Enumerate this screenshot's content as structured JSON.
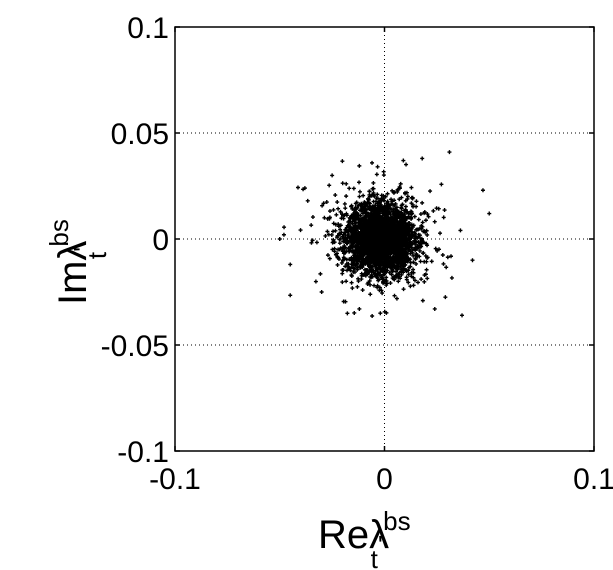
{
  "chart_data": {
    "type": "scatter",
    "title": "",
    "xlabel": {
      "base": "Reλ",
      "prime": "'",
      "sub": "t",
      "sup": "bs"
    },
    "ylabel": {
      "base": "Imλ",
      "prime": "'",
      "sub": "t",
      "sup": "bs"
    },
    "xlim": [
      -0.1,
      0.1
    ],
    "ylim": [
      -0.1,
      0.1
    ],
    "x_ticks": [
      "-0.1",
      "0",
      "0.1"
    ],
    "y_ticks": [
      "0.1",
      "0.05",
      "0",
      "-0.05",
      "-0.1"
    ],
    "grid": true,
    "grid_style": "dotted",
    "marker": "+",
    "marker_color": "#000000",
    "series": [
      {
        "distribution": "dense cluster centered near origin",
        "center": [
          -0.002,
          0.0
        ],
        "core_std": [
          0.008,
          0.008
        ],
        "point_count_approx": 3000,
        "x_extent": [
          -0.05,
          0.05
        ],
        "y_extent": [
          -0.037,
          0.042
        ],
        "notable_points": [
          [
            0.031,
            0.041
          ],
          [
            -0.048,
            0.002
          ],
          [
            0.047,
            0.023
          ],
          [
            0.037,
            -0.036
          ],
          [
            -0.045,
            -0.012
          ],
          [
            -0.038,
            0.024
          ],
          [
            0.05,
            0.012
          ],
          [
            -0.002,
            -0.035
          ],
          [
            0.018,
            0.038
          ],
          [
            -0.025,
            0.03
          ],
          [
            0.024,
            -0.033
          ],
          [
            -0.03,
            -0.025
          ],
          [
            0.042,
            -0.01
          ],
          [
            -0.05,
            0.0
          ],
          [
            0.009,
            0.037
          ],
          [
            -0.012,
            -0.033
          ]
        ]
      }
    ]
  }
}
